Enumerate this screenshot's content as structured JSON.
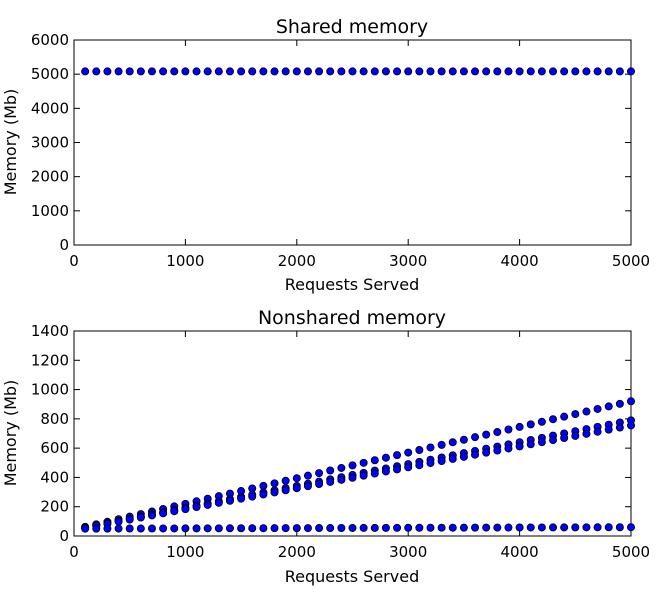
{
  "chart_data": [
    {
      "type": "scatter",
      "title": "Shared memory",
      "xlabel": "Requests Served",
      "ylabel": "Memory (Mb)",
      "xlim": [
        0,
        5000
      ],
      "ylim": [
        0,
        6000
      ],
      "xticks": [
        "0",
        "1000",
        "2000",
        "3000",
        "4000",
        "5000"
      ],
      "yticks": [
        "0",
        "1000",
        "2000",
        "3000",
        "4000",
        "5000",
        "6000"
      ],
      "marker_color": "#0000ff",
      "grid": false,
      "series": [
        {
          "x_start": 100,
          "x_end": 5000,
          "x_step": 100,
          "y_start": 5080,
          "y_end": 5080
        }
      ]
    },
    {
      "type": "scatter",
      "title": "Nonshared memory",
      "xlabel": "Requests Served",
      "ylabel": "Memory (Mb)",
      "xlim": [
        0,
        5000
      ],
      "ylim": [
        0,
        1400
      ],
      "xticks": [
        "0",
        "1000",
        "2000",
        "3000",
        "4000",
        "5000"
      ],
      "yticks": [
        "0",
        "200",
        "400",
        "600",
        "800",
        "1000",
        "1200",
        "1400"
      ],
      "marker_color": "#0000ff",
      "grid": false,
      "series": [
        {
          "x_start": 100,
          "x_end": 5000,
          "x_step": 100,
          "y_start": 62,
          "y_end": 920
        },
        {
          "x_start": 100,
          "x_end": 5000,
          "x_step": 100,
          "y_start": 58,
          "y_end": 790
        },
        {
          "x_start": 100,
          "x_end": 5000,
          "x_step": 100,
          "y_start": 55,
          "y_end": 755
        },
        {
          "x_start": 100,
          "x_end": 5000,
          "x_step": 100,
          "y_start": 50,
          "y_end": 60
        }
      ]
    }
  ]
}
